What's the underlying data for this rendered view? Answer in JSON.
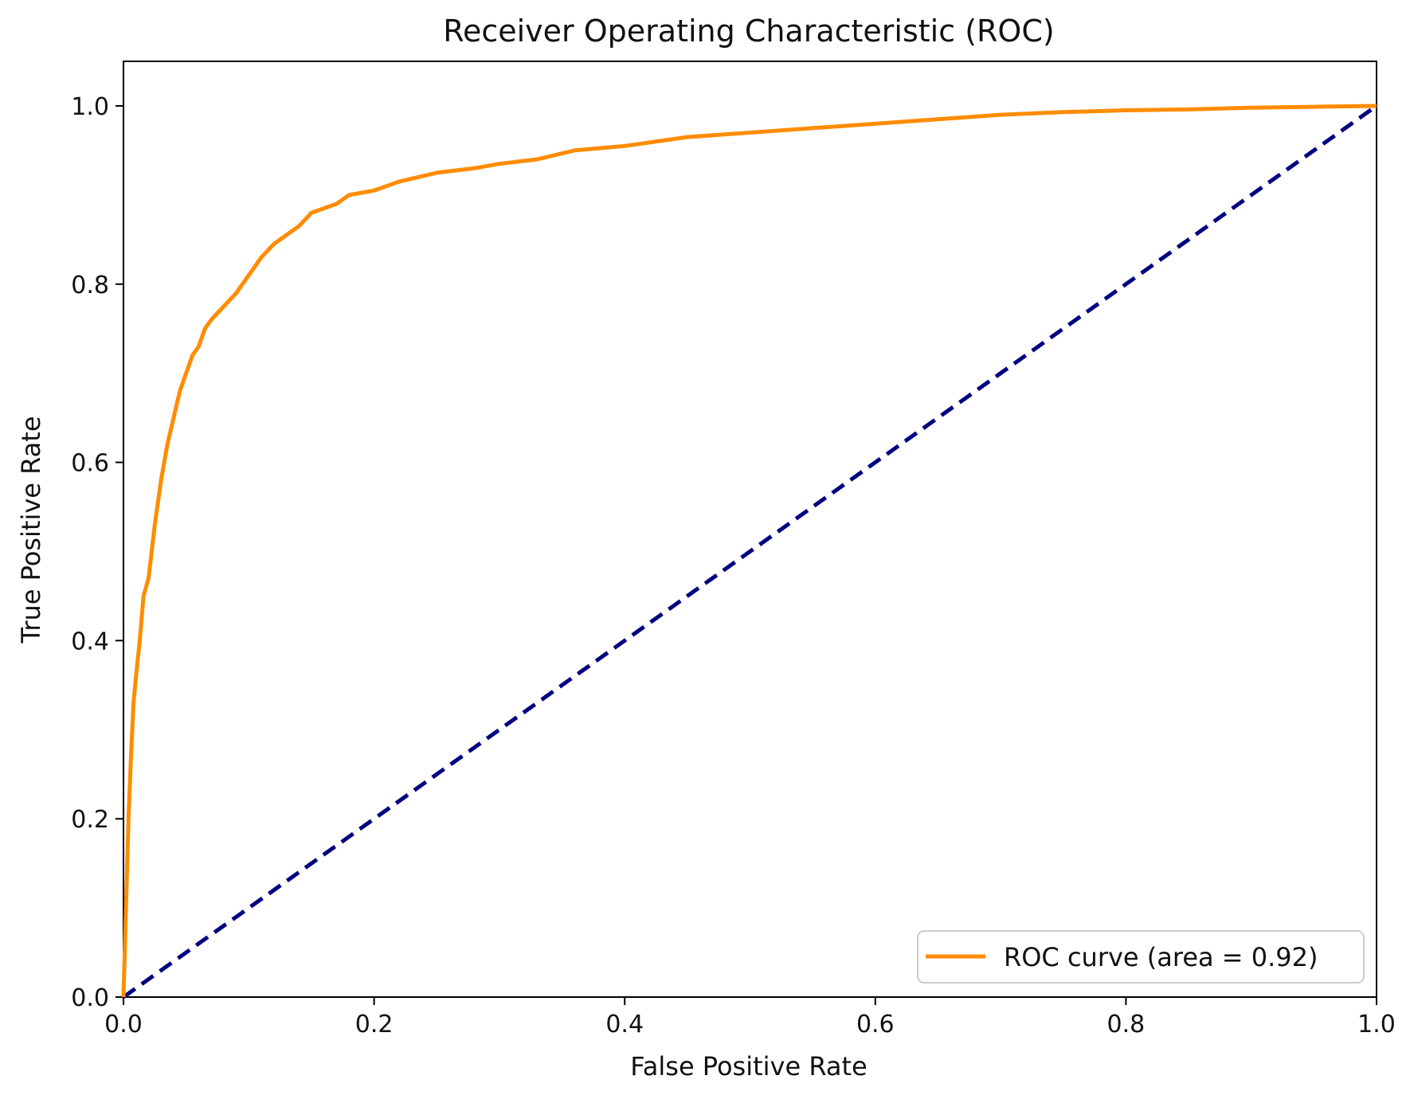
{
  "chart_data": {
    "type": "line",
    "title": "Receiver Operating Characteristic (ROC)",
    "xlabel": "False Positive Rate",
    "ylabel": "True Positive Rate",
    "xlim": [
      0.0,
      1.0
    ],
    "ylim": [
      0.0,
      1.05
    ],
    "xticks": [
      "0.0",
      "0.2",
      "0.4",
      "0.6",
      "0.8",
      "1.0"
    ],
    "yticks": [
      "0.0",
      "0.2",
      "0.4",
      "0.6",
      "0.8",
      "1.0"
    ],
    "grid": false,
    "legend_position": "lower right",
    "series": [
      {
        "name": "ROC curve (area = 0.92)",
        "color": "#ff8c00",
        "style": "solid",
        "x": [
          0.0,
          0.002,
          0.004,
          0.006,
          0.008,
          0.01,
          0.013,
          0.016,
          0.02,
          0.025,
          0.03,
          0.035,
          0.04,
          0.045,
          0.05,
          0.055,
          0.06,
          0.065,
          0.07,
          0.08,
          0.09,
          0.1,
          0.11,
          0.12,
          0.13,
          0.14,
          0.15,
          0.16,
          0.17,
          0.18,
          0.2,
          0.22,
          0.25,
          0.28,
          0.3,
          0.33,
          0.36,
          0.4,
          0.45,
          0.5,
          0.55,
          0.6,
          0.65,
          0.7,
          0.75,
          0.8,
          0.85,
          0.9,
          0.95,
          1.0
        ],
        "y": [
          0.0,
          0.1,
          0.2,
          0.27,
          0.33,
          0.36,
          0.4,
          0.45,
          0.47,
          0.53,
          0.58,
          0.62,
          0.65,
          0.68,
          0.7,
          0.72,
          0.73,
          0.75,
          0.76,
          0.775,
          0.79,
          0.81,
          0.83,
          0.845,
          0.855,
          0.865,
          0.88,
          0.885,
          0.89,
          0.9,
          0.905,
          0.915,
          0.925,
          0.93,
          0.935,
          0.94,
          0.95,
          0.955,
          0.965,
          0.97,
          0.975,
          0.98,
          0.985,
          0.99,
          0.993,
          0.995,
          0.996,
          0.998,
          0.999,
          1.0
        ]
      },
      {
        "name": "",
        "color": "#000080",
        "style": "dashed",
        "x": [
          0.0,
          1.0
        ],
        "y": [
          0.0,
          1.0
        ]
      }
    ]
  }
}
